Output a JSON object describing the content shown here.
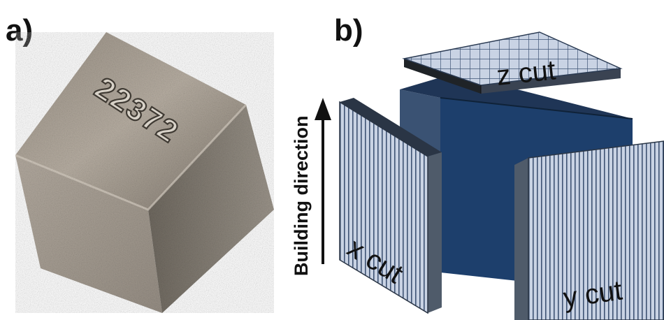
{
  "panels": {
    "a": {
      "label": "a)",
      "engraving": "22372"
    },
    "b": {
      "label": "b)"
    }
  },
  "diagram": {
    "axis_label": "Building direction",
    "cuts": {
      "x": "x cut",
      "y": "y cut",
      "z": "z cut"
    }
  },
  "colors": {
    "metal_light": "#c2b9ae",
    "metal_mid": "#8f877c",
    "metal_dark": "#5a544c",
    "cube_top": "#1f3556",
    "cube_left": "#3a5273",
    "cube_front": "#1d3f6c",
    "plate_face": "#c9d3e4",
    "plate_stripe": "#3e5374",
    "plate_edge": "#4f5b6a",
    "z_plate_side": "#1f2327",
    "arrow": "#111111"
  }
}
